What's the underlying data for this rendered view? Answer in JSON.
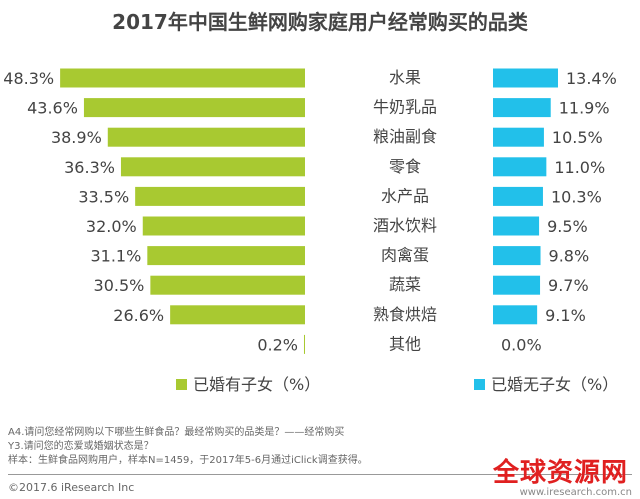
{
  "chart_data": {
    "type": "bar",
    "title": "2017年中国生鲜网购家庭用户经常购买的品类",
    "categories": [
      "水果",
      "牛奶乳品",
      "粮油副食",
      "零食",
      "水产品",
      "酒水饮料",
      "肉禽蛋",
      "蔬菜",
      "熟食烘焙",
      "其他"
    ],
    "series": [
      {
        "name": "已婚有子女（%）",
        "color": "#a8c931",
        "values": [
          48.3,
          43.6,
          38.9,
          36.3,
          33.5,
          32.0,
          31.1,
          30.5,
          26.6,
          0.2
        ]
      },
      {
        "name": "已婚无子女（%）",
        "color": "#22c0ea",
        "values": [
          13.4,
          11.9,
          10.5,
          11.0,
          10.3,
          9.5,
          9.8,
          9.7,
          9.1,
          0.0
        ]
      }
    ],
    "legend": "bottom",
    "grid": false
  },
  "footnotes": [
    "A4.请问您经常网购以下哪些生鲜食品？最经常购买的品类是？——经常购买",
    "Y3.请问您的恋爱或婚姻状态是？",
    "样本：生鲜食品网购用户，样本N=1459，于2017年5-6月通过iClick调查获得。"
  ],
  "copyright": "©2017.6 iResearch Inc",
  "watermark": "全球资源网",
  "watermark_url": "www.iresearch.com.cn"
}
